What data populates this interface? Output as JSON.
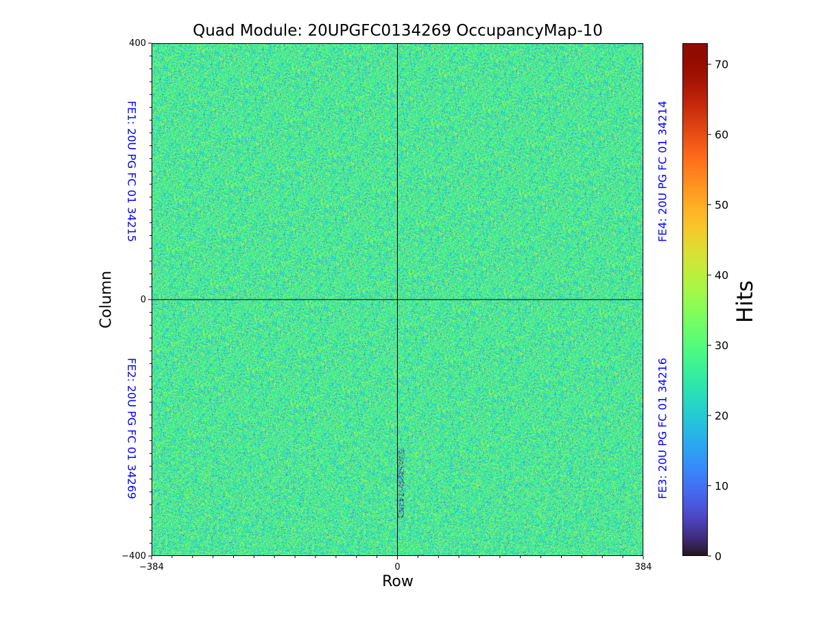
{
  "chart_data": {
    "type": "heatmap",
    "title": "Quad Module: 20UPGFC0134269 OccupancyMap-10",
    "xlabel": "Row",
    "ylabel": "Column",
    "xlim": [
      -384,
      384
    ],
    "ylim": [
      -400,
      400
    ],
    "x_ticks": [
      "−384",
      "0",
      "384"
    ],
    "y_ticks": [
      "400",
      "0",
      "−400"
    ],
    "x_tick_values": [
      -384,
      0,
      384
    ],
    "y_tick_values": [
      400,
      0,
      -400
    ],
    "colorbar": {
      "label": "Hits",
      "colormap": "turbo",
      "range": [
        0,
        73
      ],
      "ticks": [
        0,
        10,
        20,
        30,
        40,
        50,
        60,
        70
      ]
    },
    "pixel_distribution": {
      "mean_hits": 27,
      "std_hits": 7,
      "note_low_hits_region_x": [
        0,
        10
      ],
      "note_low_hits_region_y": [
        -340,
        -230
      ]
    },
    "annotations": [
      {
        "id": "fe1",
        "text": "FE1: 20U PG FC 01 34215",
        "quadrant": "top-left"
      },
      {
        "id": "fe2",
        "text": "FE2: 20U PG FC 01 34269",
        "quadrant": "bottom-left"
      },
      {
        "id": "fe3",
        "text": "FE3: 20U PG FC 01 34216",
        "quadrant": "bottom-right"
      },
      {
        "id": "fe4",
        "text": "FE4: 20U PG FC 01 34214",
        "quadrant": "top-right"
      }
    ],
    "divider_color": "#000000",
    "annotation_color": "#0000ff"
  }
}
